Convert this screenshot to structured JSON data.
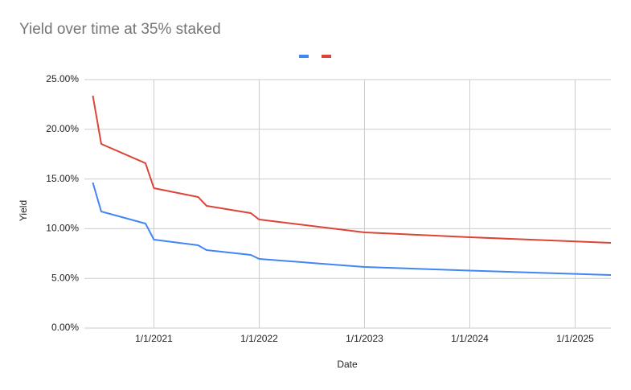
{
  "chart_data": {
    "type": "line",
    "title": "Yield over time at 35% staked",
    "x_label": "Date",
    "y_label": "Yield",
    "x": [
      2020.42,
      2020.5,
      2020.92,
      2021.0,
      2021.42,
      2021.5,
      2021.92,
      2022.0,
      2023.0,
      2024.0,
      2025.34
    ],
    "series": [
      {
        "color": "#4285f4",
        "values": [
          14.64,
          11.73,
          10.52,
          8.9,
          8.33,
          7.85,
          7.36,
          6.96,
          6.15,
          5.78,
          5.34
        ]
      },
      {
        "color": "#db4437",
        "values": [
          23.38,
          18.53,
          16.59,
          14.08,
          13.19,
          12.3,
          11.57,
          10.92,
          9.63,
          9.14,
          8.58
        ]
      }
    ],
    "xlim": [
      2020.34,
      2025.34
    ],
    "xticks": [
      {
        "value": 2021,
        "label": "1/1/2021"
      },
      {
        "value": 2022,
        "label": "1/1/2022"
      },
      {
        "value": 2023,
        "label": "1/1/2023"
      },
      {
        "value": 2024,
        "label": "1/1/2024"
      },
      {
        "value": 2025,
        "label": "1/1/2025"
      }
    ],
    "ylim": [
      0,
      25
    ],
    "yticks": [
      {
        "value": 0,
        "label": "0.00%"
      },
      {
        "value": 5,
        "label": "5.00%"
      },
      {
        "value": 10,
        "label": "10.00%"
      },
      {
        "value": 15,
        "label": "15.00%"
      },
      {
        "value": 20,
        "label": "20.00%"
      },
      {
        "value": 25,
        "label": "25.00%"
      }
    ],
    "grid": true
  }
}
